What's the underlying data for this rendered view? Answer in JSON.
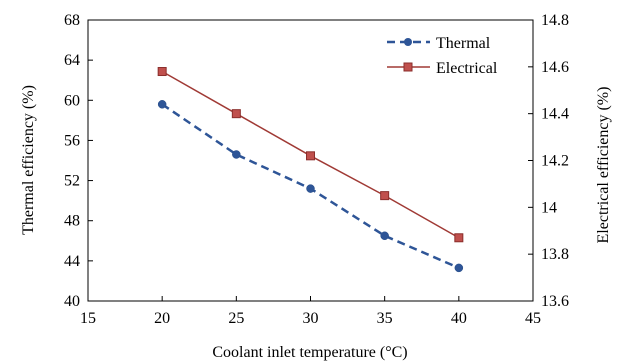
{
  "chart_data": {
    "type": "line",
    "xlabel": "Coolant inlet temperature (°C)",
    "ylabel_left": "Thermal efficiency (%)",
    "ylabel_right": "Electrical efficiency (%)",
    "xlim": [
      15,
      45
    ],
    "xticks": [
      "15",
      "20",
      "25",
      "30",
      "35",
      "40",
      "45"
    ],
    "ylim_left": [
      40,
      68
    ],
    "yticks_left": [
      "40",
      "44",
      "48",
      "52",
      "56",
      "60",
      "64",
      "68"
    ],
    "ylim_right": [
      13.6,
      14.8
    ],
    "yticks_right": [
      "13.6",
      "13.8",
      "14",
      "14.2",
      "14.4",
      "14.6",
      "14.8"
    ],
    "grid": false,
    "legend_position": "top-right",
    "x": [
      20,
      25,
      30,
      35,
      40
    ],
    "series": [
      {
        "name": "Thermal",
        "axis": "left",
        "values": [
          59.6,
          54.6,
          51.2,
          46.5,
          43.3
        ],
        "color": "#2e5597",
        "line_style": "dashed",
        "marker": "circle"
      },
      {
        "name": "Electrical",
        "axis": "right",
        "values": [
          14.58,
          14.4,
          14.22,
          14.05,
          13.87
        ],
        "color": "#a03a35",
        "line_style": "solid",
        "marker": "square"
      }
    ]
  }
}
